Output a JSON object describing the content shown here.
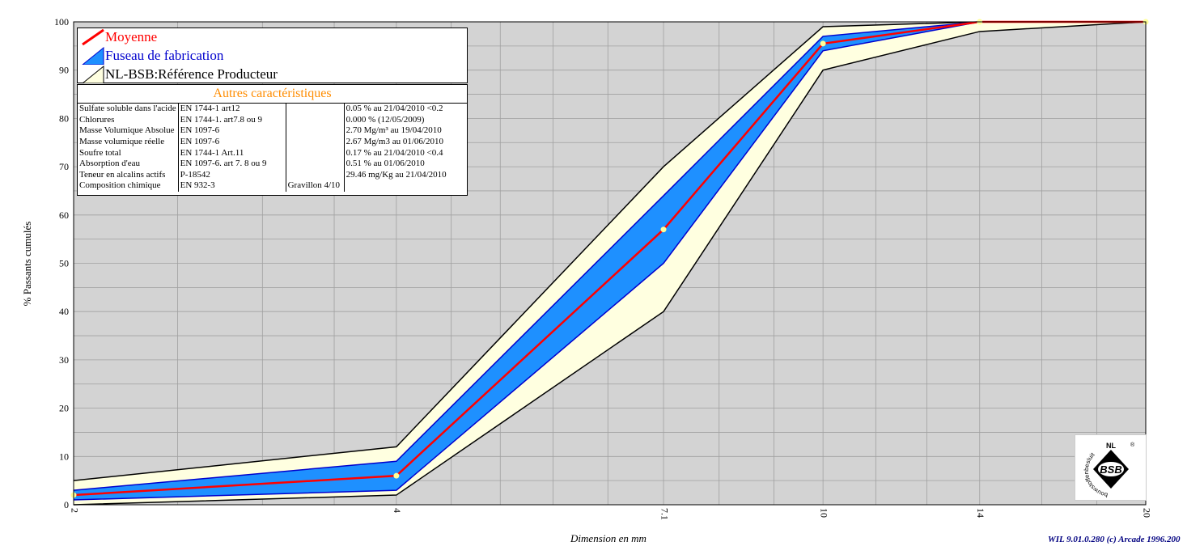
{
  "chart_data": {
    "type": "area",
    "ylabel": "% Passants cumulés",
    "xlabel": "Dimension en mm",
    "x_scale": "log",
    "xlim": [
      2,
      20
    ],
    "ylim": [
      0,
      100
    ],
    "grid": true,
    "x_ticks": [
      2,
      4,
      7.1,
      10,
      14,
      20
    ],
    "x_tick_labels": [
      "2",
      "4",
      "7.1",
      "10",
      "14",
      "20"
    ],
    "y_ticks": [
      0,
      10,
      20,
      30,
      40,
      50,
      60,
      70,
      80,
      90,
      100
    ],
    "y_tick_labels": [
      "0",
      "10",
      "20",
      "30",
      "40",
      "50",
      "60",
      "70",
      "80",
      "90",
      "100"
    ],
    "series": [
      {
        "name": "NL-BSB:Référence Producteur",
        "style": "band",
        "color": "#ffffe0",
        "x": [
          2,
          4,
          7.1,
          10,
          14,
          20
        ],
        "lower": [
          0,
          2,
          40,
          90,
          98,
          100
        ],
        "upper": [
          5,
          12,
          70,
          99,
          100,
          100
        ]
      },
      {
        "name": "Fuseau de fabrication",
        "style": "band",
        "color": "#1e90ff",
        "edge_color": "#0000cd",
        "x": [
          2,
          4,
          7.1,
          10,
          14,
          20
        ],
        "lower": [
          1,
          3,
          50,
          94,
          100,
          100
        ],
        "upper": [
          3,
          9,
          64,
          97,
          100,
          100
        ]
      },
      {
        "name": "Moyenne",
        "style": "line",
        "color": "#ff0000",
        "x": [
          2,
          4,
          7.1,
          10,
          14,
          20
        ],
        "values": [
          2,
          6,
          57,
          95.5,
          100,
          100
        ]
      }
    ]
  },
  "legend": {
    "items": [
      {
        "label": "Moyenne",
        "color": "#ff0000"
      },
      {
        "label": "Fuseau de fabrication",
        "color": "#0000cd"
      },
      {
        "label": "NL-BSB:Référence Producteur",
        "color": "#000000"
      }
    ]
  },
  "characteristics": {
    "title": "Autres caractéristiques",
    "rows": [
      {
        "name": "Sulfate soluble dans l'acide",
        "norm": "EN 1744-1 art12",
        "extra": "",
        "value": "0.05 %  au 21/04/2010 <0.2"
      },
      {
        "name": "Chlorures",
        "norm": "EN 1744-1. art7.8 ou 9",
        "extra": "",
        "value": "0.000 %  (12/05/2009)"
      },
      {
        "name": "Masse Volumique Absolue",
        "norm": "EN 1097-6",
        "extra": "",
        "value": "2.70 Mg/m³  au 19/04/2010"
      },
      {
        "name": "Masse volumique réelle",
        "norm": "EN 1097-6",
        "extra": "",
        "value": "2.67 Mg/m3  au 01/06/2010"
      },
      {
        "name": "Soufre total",
        "norm": "EN 1744-1 Art.11",
        "extra": "",
        "value": "0.17 %  au 21/04/2010 <0.4"
      },
      {
        "name": "Absorption d'eau",
        "norm": "EN 1097-6. art 7. 8 ou 9",
        "extra": "",
        "value": "0.51 %  au 01/06/2010"
      },
      {
        "name": "Teneur en alcalins actifs",
        "norm": "P-18542",
        "extra": "",
        "value": "29.46 mg/Kg  au 21/04/2010"
      },
      {
        "name": "Composition chimique",
        "norm": "EN 932-3",
        "extra": "Gravillon 4/10",
        "value": ""
      }
    ]
  },
  "logo": {
    "top_text": "NL",
    "center_text": "BSB",
    "ring_text": "bouwstoffenbesluit",
    "mark": "®"
  },
  "credit": "WIL 9.01.0.280 (c) Arcade 1996.200",
  "colors": {
    "plot_background": "#d3d3d3",
    "grid": "#a0a0a0",
    "marker": "#ffff99"
  }
}
